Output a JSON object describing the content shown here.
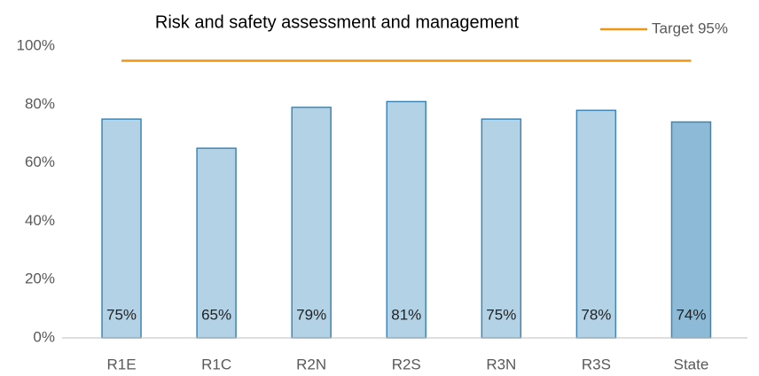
{
  "chart_data": {
    "type": "bar",
    "title": "Risk and safety assessment and management",
    "categories": [
      "R1E",
      "R1C",
      "R2N",
      "R2S",
      "R3N",
      "R3S",
      "State"
    ],
    "values": [
      75,
      65,
      79,
      81,
      75,
      78,
      74
    ],
    "value_labels": [
      "75%",
      "65%",
      "79%",
      "81%",
      "75%",
      "78%",
      "74%"
    ],
    "colors": [
      "#b4d2e5",
      "#b4d2e5",
      "#b4d2e5",
      "#b4d2e5",
      "#b4d2e5",
      "#b4d2e5",
      "#8cbad7"
    ],
    "edge_color": "#3f86b5",
    "series": [
      {
        "name": "Target 95%",
        "color": "#f0960f",
        "type": "line",
        "values": [
          95,
          95,
          95,
          95,
          95,
          95,
          95
        ]
      }
    ],
    "ylim": [
      0,
      100
    ],
    "yticks": [
      {
        "value": 0,
        "label": "0%"
      },
      {
        "value": 20,
        "label": "20%"
      },
      {
        "value": 40,
        "label": "40%"
      },
      {
        "value": 60,
        "label": "60%"
      },
      {
        "value": 80,
        "label": "80%"
      },
      {
        "value": 100,
        "label": "100%"
      }
    ],
    "grid": false,
    "legend": "top-right"
  }
}
